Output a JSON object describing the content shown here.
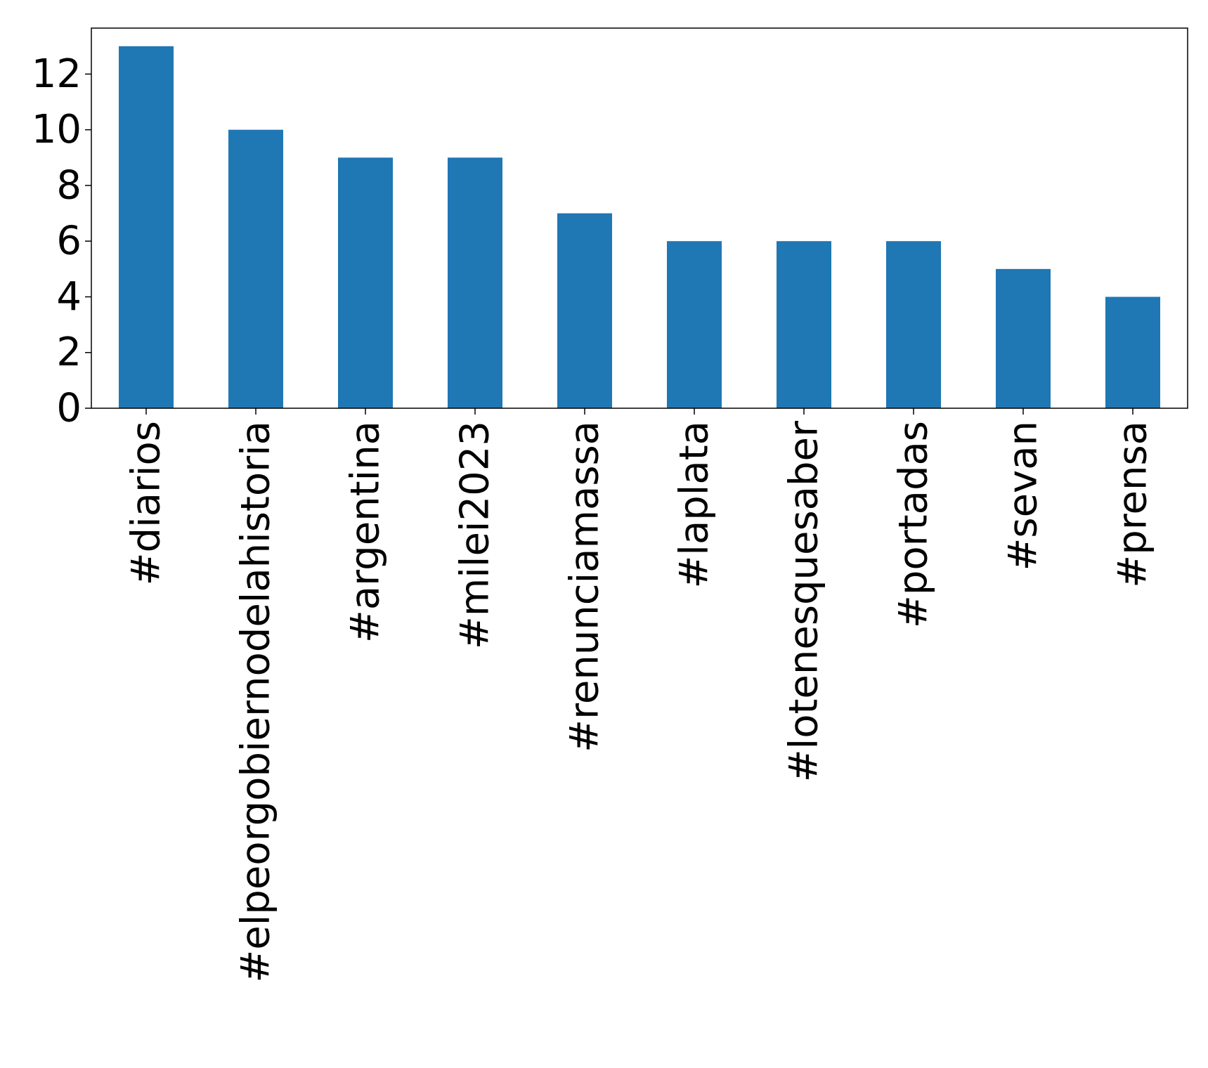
{
  "chart_data": {
    "type": "bar",
    "categories": [
      "#diarios",
      "#elpeorgobiernodelahistoria",
      "#argentina",
      "#milei2023",
      "#renunciamassa",
      "#laplata",
      "#lotenesquesaber",
      "#portadas",
      "#sevan",
      "#prensa"
    ],
    "values": [
      13,
      10,
      9,
      9,
      7,
      6,
      6,
      6,
      5,
      4
    ],
    "title": "",
    "xlabel": "",
    "ylabel": "",
    "ylim": [
      0,
      13.65
    ],
    "yticks": [
      0,
      2,
      4,
      6,
      8,
      10,
      12
    ],
    "grid": false,
    "legend": "none",
    "bar_color": "#1f77b4"
  }
}
